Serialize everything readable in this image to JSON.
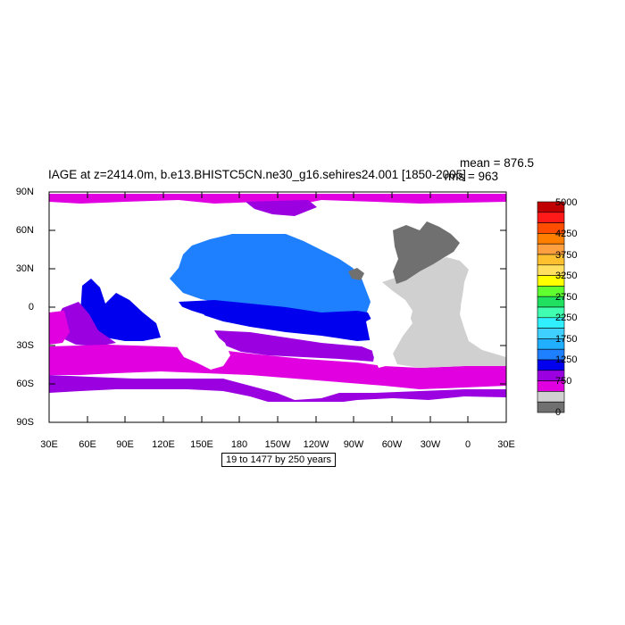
{
  "title": "IAGE at z=2414.0m, b.e13.BHISTC5CN.ne30_g16.sehires24.001 [1850-2005]",
  "stats": {
    "mean": "mean = 876.5",
    "rms": "rms = 963"
  },
  "contour_info": "19 to 1477 by 250 years",
  "latitude_labels": [
    "90N",
    "60N",
    "30N",
    "0",
    "30S",
    "60S",
    "90S"
  ],
  "longitude_labels": [
    "30E",
    "60E",
    "90E",
    "120E",
    "150E",
    "180",
    "150W",
    "120W",
    "90W",
    "60W",
    "30W",
    "0",
    "30E"
  ],
  "colorbar": {
    "labels": [
      "5000",
      "4250",
      "3750",
      "3250",
      "2750",
      "2250",
      "1750",
      "1250",
      "750",
      "0"
    ],
    "colors": [
      "#c00000",
      "#ff1a1a",
      "#ff4d00",
      "#ff8000",
      "#ffa040",
      "#ffc030",
      "#ffe060",
      "#ffff00",
      "#60ff30",
      "#20e060",
      "#40ffb0",
      "#30f0ff",
      "#40d0ff",
      "#20b0ff",
      "#1e7fff",
      "#0000ee",
      "#9a00e0",
      "#e000e0",
      "#d0d0d0",
      "#707070"
    ]
  },
  "map_colors": {
    "ocean_blue": "#1e7fff",
    "deep_blue": "#0000ee",
    "purple": "#9a00e0",
    "magenta": "#e000e0",
    "light_gray": "#d0d0d0",
    "dark_gray": "#707070"
  }
}
